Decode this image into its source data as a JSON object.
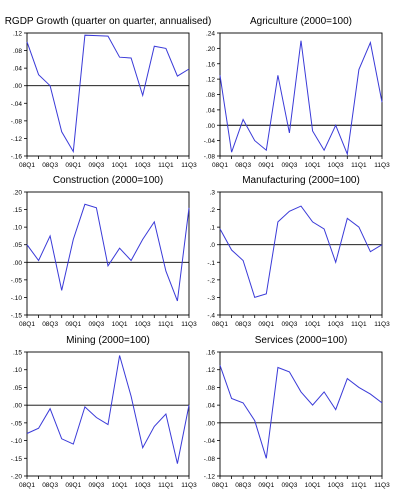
{
  "chart_data": [
    {
      "type": "line",
      "title": "RGDP Growth (quarter on quarter, annualised)",
      "x_tick_labels": [
        "08Q1",
        "08Q3",
        "09Q1",
        "09Q3",
        "10Q1",
        "10Q3",
        "11Q1",
        "11Q3"
      ],
      "x": [
        "08Q1",
        "08Q2",
        "08Q3",
        "08Q4",
        "09Q1",
        "09Q2",
        "09Q3",
        "09Q4",
        "10Q1",
        "10Q2",
        "10Q3",
        "10Q4",
        "11Q1",
        "11Q2",
        "11Q3"
      ],
      "values": [
        0.1,
        0.025,
        0.0,
        -0.105,
        -0.15,
        0.115,
        0.114,
        0.113,
        0.065,
        0.063,
        -0.022,
        0.09,
        0.085,
        0.022,
        0.038
      ],
      "ylim": [
        -0.16,
        0.12
      ],
      "y_ticks": [
        -0.16,
        -0.12,
        -0.08,
        -0.04,
        0.0,
        0.04,
        0.08,
        0.12
      ],
      "y_tick_labels": [
        "-.16",
        "-.12",
        "-.08",
        "-.04",
        ".00",
        ".04",
        ".08",
        ".12"
      ],
      "zero_line": true,
      "color": "#3a3ad8"
    },
    {
      "type": "line",
      "title": "Agriculture (2000=100)",
      "x_tick_labels": [
        "08Q1",
        "08Q3",
        "09Q1",
        "09Q3",
        "10Q1",
        "10Q3",
        "11Q1",
        "11Q3"
      ],
      "x": [
        "08Q1",
        "08Q2",
        "08Q3",
        "08Q4",
        "09Q1",
        "09Q2",
        "09Q3",
        "09Q4",
        "10Q1",
        "10Q2",
        "10Q3",
        "10Q4",
        "11Q1",
        "11Q2",
        "11Q3"
      ],
      "values": [
        0.13,
        -0.07,
        0.015,
        -0.04,
        -0.065,
        0.13,
        -0.02,
        0.22,
        -0.015,
        -0.065,
        0.0,
        -0.075,
        0.145,
        0.215,
        0.06
      ],
      "ylim": [
        -0.08,
        0.24
      ],
      "y_ticks": [
        -0.08,
        -0.04,
        0.0,
        0.04,
        0.08,
        0.12,
        0.16,
        0.2,
        0.24
      ],
      "y_tick_labels": [
        "-.08",
        "-.04",
        ".00",
        ".04",
        ".08",
        ".12",
        ".16",
        ".20",
        ".24"
      ],
      "zero_line": true,
      "color": "#3a3ad8"
    },
    {
      "type": "line",
      "title": "Construction (2000=100)",
      "x_tick_labels": [
        "08Q1",
        "08Q3",
        "09Q1",
        "09Q3",
        "10Q1",
        "10Q3",
        "11Q1",
        "11Q3"
      ],
      "x": [
        "08Q1",
        "08Q2",
        "08Q3",
        "08Q4",
        "09Q1",
        "09Q2",
        "09Q3",
        "09Q4",
        "10Q1",
        "10Q2",
        "10Q3",
        "10Q4",
        "11Q1",
        "11Q2",
        "11Q3"
      ],
      "values": [
        0.05,
        0.005,
        0.075,
        -0.08,
        0.065,
        0.165,
        0.155,
        -0.01,
        0.04,
        0.005,
        0.065,
        0.115,
        -0.025,
        -0.11,
        0.155
      ],
      "ylim": [
        -0.15,
        0.2
      ],
      "y_ticks": [
        -0.15,
        -0.1,
        -0.05,
        0.0,
        0.05,
        0.1,
        0.15,
        0.2
      ],
      "y_tick_labels": [
        "-.15",
        "-.10",
        "-.05",
        ".00",
        ".05",
        ".10",
        ".15",
        ".20"
      ],
      "zero_line": true,
      "color": "#3a3ad8"
    },
    {
      "type": "line",
      "title": "Manufacturing (2000=100)",
      "x_tick_labels": [
        "08Q1",
        "08Q3",
        "09Q1",
        "09Q3",
        "10Q1",
        "10Q3",
        "11Q1",
        "11Q3"
      ],
      "x": [
        "08Q1",
        "08Q2",
        "08Q3",
        "08Q4",
        "09Q1",
        "09Q2",
        "09Q3",
        "09Q4",
        "10Q1",
        "10Q2",
        "10Q3",
        "10Q4",
        "11Q1",
        "11Q2",
        "11Q3"
      ],
      "values": [
        0.09,
        -0.03,
        -0.09,
        -0.3,
        -0.28,
        0.13,
        0.19,
        0.22,
        0.13,
        0.09,
        -0.1,
        0.15,
        0.1,
        -0.04,
        0.0
      ],
      "ylim": [
        -0.4,
        0.3
      ],
      "y_ticks": [
        -0.4,
        -0.3,
        -0.2,
        -0.1,
        0.0,
        0.1,
        0.2,
        0.3
      ],
      "y_tick_labels": [
        "-.4",
        "-.3",
        "-.2",
        "-.1",
        ".0",
        ".1",
        ".2",
        ".3"
      ],
      "zero_line": true,
      "color": "#3a3ad8"
    },
    {
      "type": "line",
      "title": "Mining (2000=100)",
      "x_tick_labels": [
        "08Q1",
        "08Q3",
        "09Q1",
        "09Q3",
        "10Q1",
        "10Q3",
        "11Q1",
        "11Q3"
      ],
      "x": [
        "08Q1",
        "08Q2",
        "08Q3",
        "08Q4",
        "09Q1",
        "09Q2",
        "09Q3",
        "09Q4",
        "10Q1",
        "10Q2",
        "10Q3",
        "10Q4",
        "11Q1",
        "11Q2",
        "11Q3"
      ],
      "values": [
        -0.08,
        -0.065,
        -0.01,
        -0.095,
        -0.11,
        -0.005,
        -0.035,
        -0.055,
        0.14,
        0.025,
        -0.12,
        -0.06,
        -0.025,
        -0.165,
        0.0
      ],
      "ylim": [
        -0.2,
        0.15
      ],
      "y_ticks": [
        -0.2,
        -0.15,
        -0.1,
        -0.05,
        0.0,
        0.05,
        0.1,
        0.15
      ],
      "y_tick_labels": [
        "-.20",
        "-.15",
        "-.10",
        "-.05",
        ".00",
        ".05",
        ".10",
        ".15"
      ],
      "zero_line": true,
      "color": "#3a3ad8"
    },
    {
      "type": "line",
      "title": "Services (2000=100)",
      "x_tick_labels": [
        "08Q1",
        "08Q3",
        "09Q1",
        "09Q3",
        "10Q1",
        "10Q3",
        "11Q1",
        "11Q3"
      ],
      "x": [
        "08Q1",
        "08Q2",
        "08Q3",
        "08Q4",
        "09Q1",
        "09Q2",
        "09Q3",
        "09Q4",
        "10Q1",
        "10Q2",
        "10Q3",
        "10Q4",
        "11Q1",
        "11Q2",
        "11Q3"
      ],
      "values": [
        0.13,
        0.055,
        0.045,
        0.005,
        -0.08,
        0.125,
        0.115,
        0.07,
        0.04,
        0.07,
        0.03,
        0.1,
        0.08,
        0.065,
        0.045
      ],
      "ylim": [
        -0.12,
        0.16
      ],
      "y_ticks": [
        -0.12,
        -0.08,
        -0.04,
        0.0,
        0.04,
        0.08,
        0.12,
        0.16
      ],
      "y_tick_labels": [
        "-.12",
        "-.08",
        "-.04",
        ".00",
        ".04",
        ".08",
        ".12",
        ".16"
      ],
      "zero_line": true,
      "color": "#3a3ad8"
    }
  ]
}
